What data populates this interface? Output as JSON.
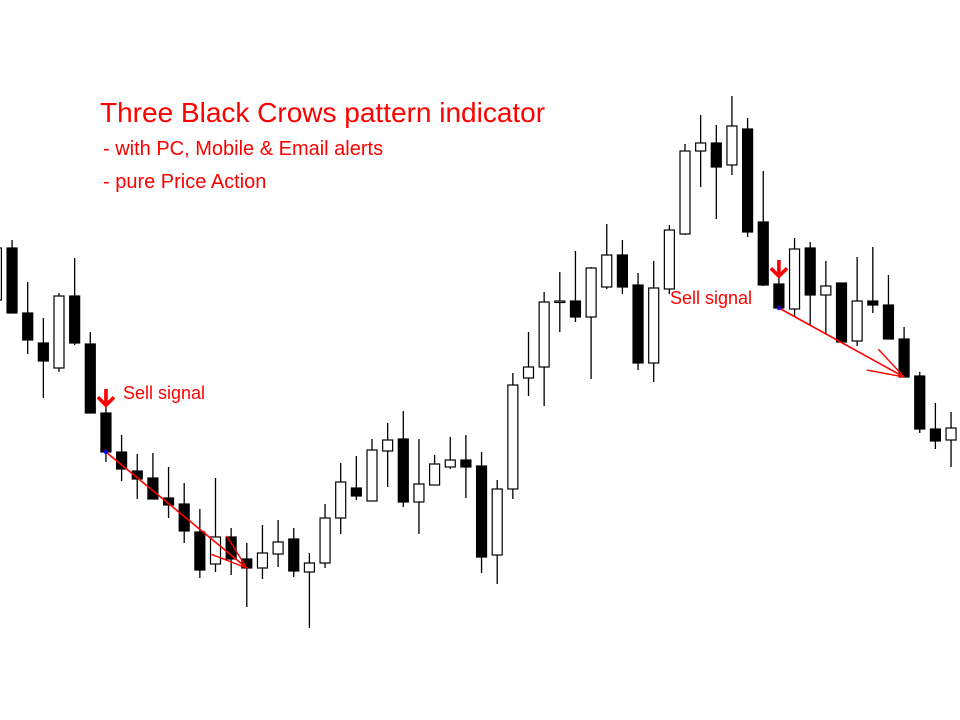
{
  "chart_data": {
    "type": "candlestick",
    "title": "Three Black Crows pattern indicator",
    "subtitle_lines": [
      "- with PC, Mobile & Email alerts",
      "- pure Price Action"
    ],
    "grid": false,
    "ylim": [
      0,
      720
    ],
    "colors": {
      "bearish": "#000000",
      "bullish": "#ffffff",
      "outline": "#000000",
      "signal": "#ff0000",
      "marker": "#0000ff"
    },
    "ohlc": [
      [
        420,
        478,
        418,
        472
      ],
      [
        472,
        480,
        407,
        407
      ],
      [
        407,
        438,
        366,
        380
      ],
      [
        377,
        402,
        322,
        359
      ],
      [
        352,
        427,
        348,
        424
      ],
      [
        424,
        462,
        375,
        377
      ],
      [
        376,
        388,
        307,
        307
      ],
      [
        307,
        326,
        258,
        268
      ],
      [
        268,
        285,
        239,
        251
      ],
      [
        249,
        266,
        221,
        241
      ],
      [
        242,
        267,
        221,
        221
      ],
      [
        222,
        253,
        202,
        215
      ],
      [
        216,
        237,
        177,
        189
      ],
      [
        188,
        211,
        142,
        150
      ],
      [
        156,
        242,
        148,
        183
      ],
      [
        183,
        192,
        145,
        161
      ],
      [
        161,
        177,
        113,
        152
      ],
      [
        152,
        195,
        141,
        167
      ],
      [
        166,
        200,
        153,
        178
      ],
      [
        181,
        192,
        143,
        149
      ],
      [
        148,
        167,
        92,
        157
      ],
      [
        157,
        216,
        152,
        202
      ],
      [
        202,
        257,
        186,
        238
      ],
      [
        232,
        264,
        220,
        224
      ],
      [
        219,
        281,
        219,
        270
      ],
      [
        269,
        297,
        233,
        280
      ],
      [
        281,
        309,
        213,
        218
      ],
      [
        218,
        281,
        186,
        236
      ],
      [
        235,
        265,
        235,
        256
      ],
      [
        253,
        283,
        251,
        260
      ],
      [
        260,
        285,
        222,
        253
      ],
      [
        254,
        268,
        147,
        163
      ],
      [
        165,
        240,
        136,
        231
      ],
      [
        231,
        347,
        221,
        335
      ],
      [
        342,
        388,
        324,
        353
      ],
      [
        353,
        428,
        314,
        418
      ],
      [
        418,
        448,
        388,
        419
      ],
      [
        419,
        469,
        398,
        403
      ],
      [
        403,
        453,
        341,
        452
      ],
      [
        433,
        496,
        431,
        465
      ],
      [
        465,
        480,
        426,
        433
      ],
      [
        435,
        447,
        350,
        357
      ],
      [
        357,
        459,
        338,
        432
      ],
      [
        431,
        495,
        426,
        490
      ],
      [
        486,
        576,
        485,
        569
      ],
      [
        569,
        605,
        533,
        577
      ],
      [
        577,
        595,
        501,
        553
      ],
      [
        555,
        624,
        545,
        594
      ],
      [
        591,
        602,
        483,
        488
      ],
      [
        498,
        549,
        434,
        435
      ],
      [
        436,
        452,
        412,
        412
      ],
      [
        411,
        482,
        403,
        471
      ],
      [
        472,
        478,
        395,
        425
      ],
      [
        425,
        459,
        385,
        434
      ],
      [
        437,
        437,
        378,
        378
      ],
      [
        379,
        463,
        374,
        419
      ],
      [
        419,
        473,
        407,
        415
      ],
      [
        415,
        445,
        381,
        381
      ],
      [
        381,
        393,
        343,
        343
      ],
      [
        344,
        348,
        287,
        291
      ],
      [
        291,
        317,
        271,
        279
      ],
      [
        280,
        308,
        253,
        292
      ]
    ],
    "signals": [
      {
        "label": "Sell signal",
        "from_candle": 7,
        "to_candle": 16
      },
      {
        "label": "Sell signal",
        "from_candle": 50,
        "to_candle": 58
      }
    ]
  }
}
